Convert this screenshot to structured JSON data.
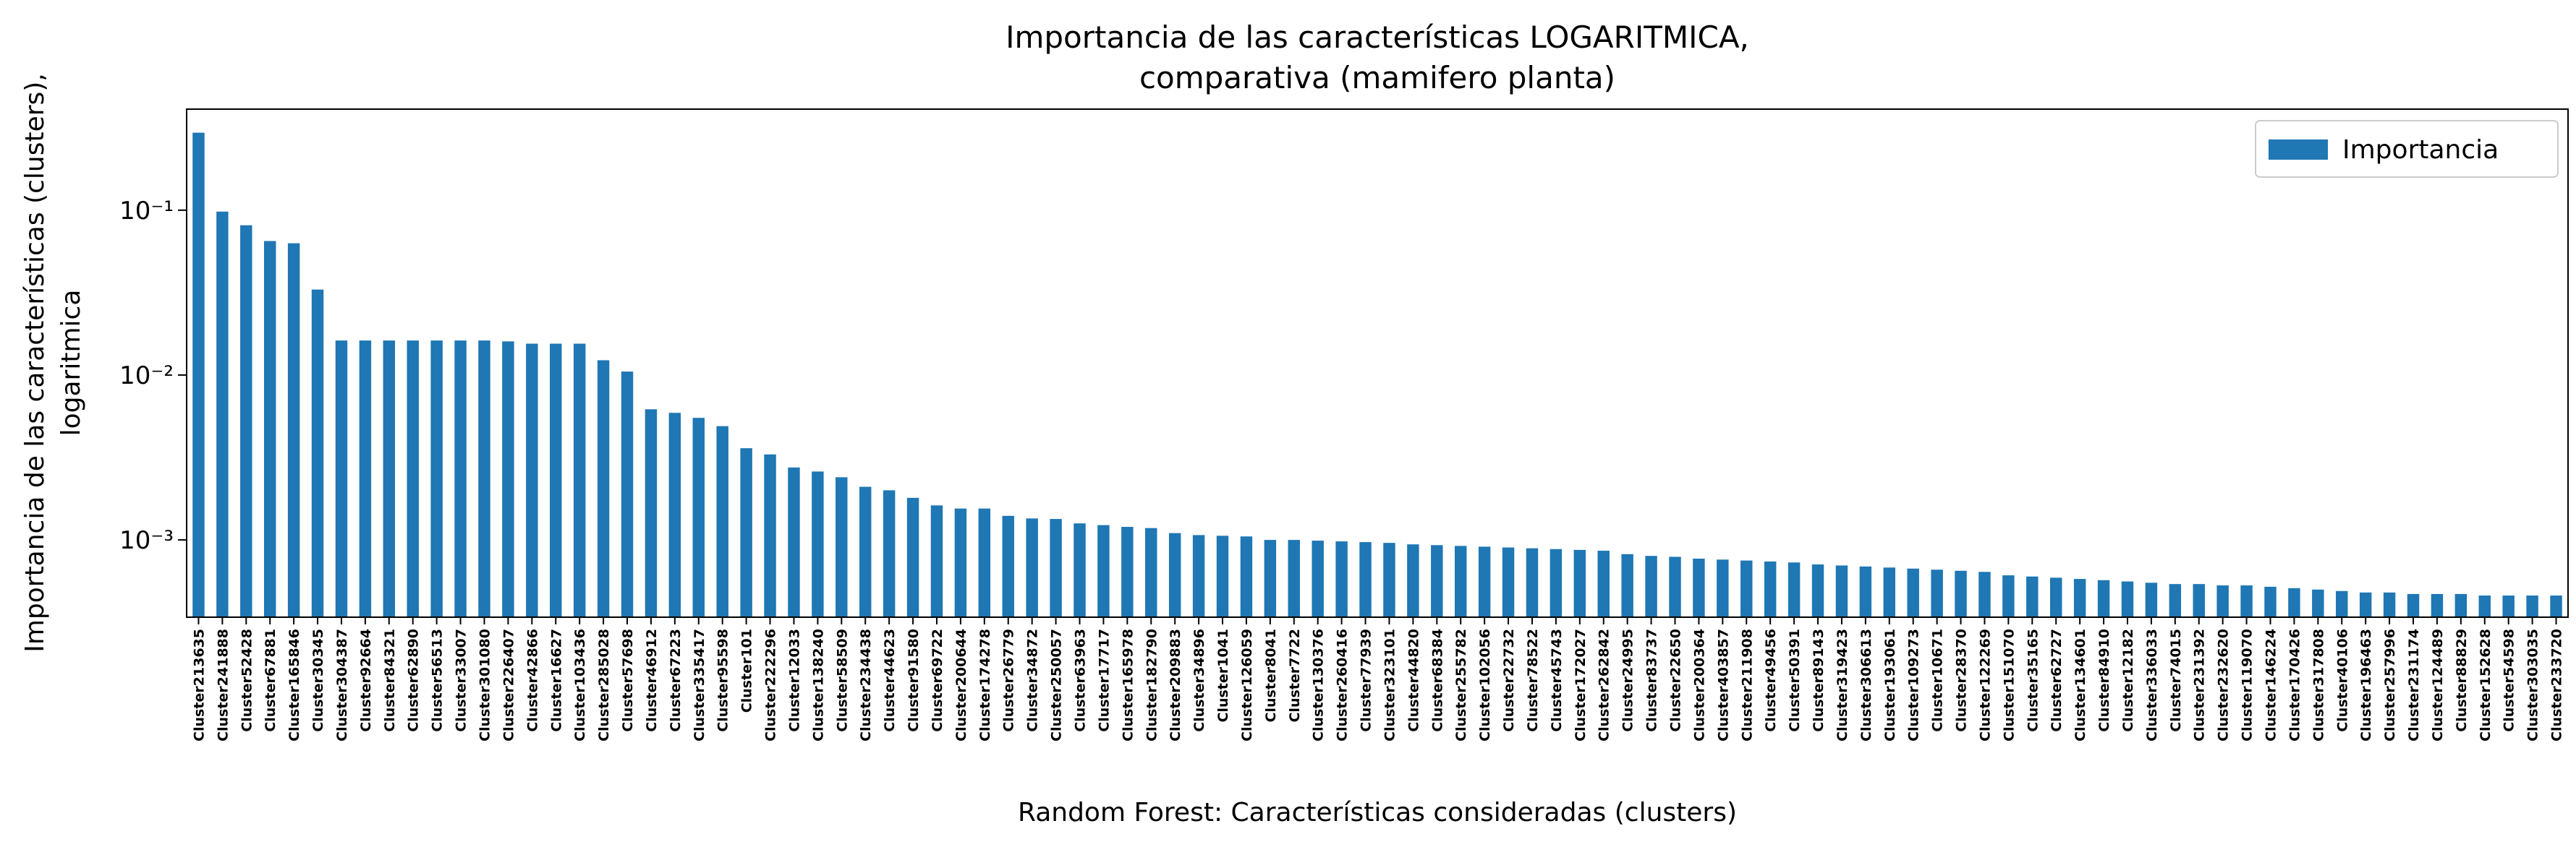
{
  "chart_data": {
    "type": "bar",
    "log_y": true,
    "title": [
      "Importancia de las características LOGARITMICA,",
      "comparativa (mamifero planta)"
    ],
    "ylabel": [
      "Importancia de las características (clusters),",
      "logaritmica"
    ],
    "xlabel": "Random Forest: Características consideradas (clusters)",
    "legend_position": "upper right",
    "series": [
      {
        "name": "Importancia",
        "color": "#1f77b4",
        "values": [
          0.295,
          0.098,
          0.081,
          0.065,
          0.063,
          0.033,
          0.0162,
          0.0162,
          0.0162,
          0.0162,
          0.0162,
          0.0162,
          0.0162,
          0.016,
          0.0155,
          0.0155,
          0.0155,
          0.0123,
          0.0105,
          0.0062,
          0.0059,
          0.0055,
          0.0049,
          0.0036,
          0.0033,
          0.00275,
          0.0026,
          0.0024,
          0.0021,
          0.002,
          0.0018,
          0.00162,
          0.00155,
          0.00155,
          0.0014,
          0.00135,
          0.00134,
          0.00126,
          0.00123,
          0.0012,
          0.00118,
          0.0011,
          0.00107,
          0.00106,
          0.00105,
          0.001,
          0.001,
          0.00099,
          0.00098,
          0.00097,
          0.00096,
          0.00094,
          0.00093,
          0.00092,
          0.00091,
          0.0009,
          0.00089,
          0.00088,
          0.00087,
          0.00086,
          0.00082,
          0.0008,
          0.00079,
          0.00077,
          0.00076,
          0.00075,
          0.00074,
          0.00073,
          0.00071,
          0.0007,
          0.00069,
          0.00068,
          0.00067,
          0.00066,
          0.00065,
          0.00064,
          0.00061,
          0.0006,
          0.00059,
          0.00058,
          0.00057,
          0.00056,
          0.00055,
          0.00054,
          0.00054,
          0.00053,
          0.00053,
          0.00052,
          0.00051,
          0.0005,
          0.00049,
          0.00048,
          0.00048,
          0.00047,
          0.00047,
          0.00047,
          0.00046,
          0.00046,
          0.00046,
          0.00046
        ]
      }
    ],
    "categories": [
      "Cluster213635",
      "Cluster241888",
      "Cluster52428",
      "Cluster67881",
      "Cluster165846",
      "Cluster30345",
      "Cluster304387",
      "Cluster92664",
      "Cluster84321",
      "Cluster62890",
      "Cluster56513",
      "Cluster33007",
      "Cluster301080",
      "Cluster226407",
      "Cluster42866",
      "Cluster16627",
      "Cluster103436",
      "Cluster285028",
      "Cluster57698",
      "Cluster46912",
      "Cluster67223",
      "Cluster335417",
      "Cluster95598",
      "Cluster101",
      "Cluster222296",
      "Cluster12033",
      "Cluster138240",
      "Cluster58509",
      "Cluster234438",
      "Cluster44623",
      "Cluster91580",
      "Cluster69722",
      "Cluster200644",
      "Cluster174278",
      "Cluster26779",
      "Cluster34872",
      "Cluster250057",
      "Cluster63963",
      "Cluster17717",
      "Cluster165978",
      "Cluster182790",
      "Cluster209883",
      "Cluster34896",
      "Cluster1041",
      "Cluster126059",
      "Cluster8041",
      "Cluster7722",
      "Cluster130376",
      "Cluster260416",
      "Cluster77939",
      "Cluster323101",
      "Cluster44820",
      "Cluster68384",
      "Cluster255782",
      "Cluster102056",
      "Cluster22732",
      "Cluster78522",
      "Cluster45743",
      "Cluster172027",
      "Cluster262842",
      "Cluster24995",
      "Cluster83737",
      "Cluster22650",
      "Cluster200364",
      "Cluster403857",
      "Cluster211908",
      "Cluster49456",
      "Cluster50391",
      "Cluster89143",
      "Cluster319423",
      "Cluster306613",
      "Cluster193061",
      "Cluster109273",
      "Cluster10671",
      "Cluster28370",
      "Cluster122269",
      "Cluster151070",
      "Cluster35165",
      "Cluster62727",
      "Cluster134601",
      "Cluster84910",
      "Cluster12182",
      "Cluster336033",
      "Cluster74015",
      "Cluster231392",
      "Cluster232620",
      "Cluster119070",
      "Cluster146224",
      "Cluster170426",
      "Cluster317808",
      "Cluster40106",
      "Cluster196463",
      "Cluster257996",
      "Cluster231174",
      "Cluster124489",
      "Cluster88829",
      "Cluster152628",
      "Cluster54598",
      "Cluster303035",
      "Cluster233720"
    ],
    "ylim": [
      0.00034,
      0.41
    ],
    "yticks": [
      {
        "value": 0.001,
        "label": "10⁻³"
      },
      {
        "value": 0.01,
        "label": "10⁻²"
      },
      {
        "value": 0.1,
        "label": "10⁻¹"
      }
    ]
  }
}
